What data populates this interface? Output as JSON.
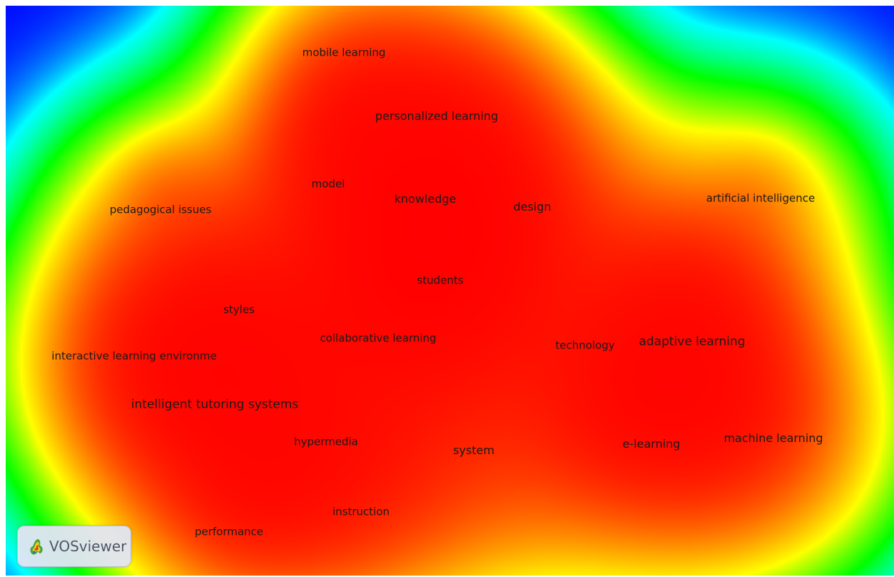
{
  "app": {
    "name": "VOSviewer",
    "logo_icon": "vosviewer-logo-icon"
  },
  "colors": {
    "background": "#0000ff",
    "gradient": [
      "#0000ff",
      "#00ffff",
      "#00ff00",
      "#ffff00",
      "#ff8000",
      "#ff0000"
    ]
  },
  "terms": [
    {
      "id": "mobile-learning",
      "label": "mobile learning",
      "weight": 0.55
    },
    {
      "id": "personalized-learning",
      "label": "personalized learning",
      "weight": 0.9
    },
    {
      "id": "model",
      "label": "model",
      "weight": 0.5
    },
    {
      "id": "knowledge",
      "label": "knowledge",
      "weight": 0.85
    },
    {
      "id": "design",
      "label": "design",
      "weight": 0.8
    },
    {
      "id": "artificial-intelligence",
      "label": "artificial intelligence",
      "weight": 0.5
    },
    {
      "id": "pedagogical-issues",
      "label": "pedagogical issues",
      "weight": 0.5
    },
    {
      "id": "students",
      "label": "students",
      "weight": 0.65
    },
    {
      "id": "styles",
      "label": "styles",
      "weight": 0.7
    },
    {
      "id": "collaborative-learning",
      "label": "collaborative learning",
      "weight": 0.6
    },
    {
      "id": "technology",
      "label": "technology",
      "weight": 0.55
    },
    {
      "id": "adaptive-learning",
      "label": "adaptive learning",
      "weight": 1.0
    },
    {
      "id": "interactive-learning-environme",
      "label": "interactive learning environme",
      "weight": 0.7
    },
    {
      "id": "intelligent-tutoring-systems",
      "label": "intelligent tutoring systems",
      "weight": 1.0
    },
    {
      "id": "hypermedia",
      "label": "hypermedia",
      "weight": 0.6
    },
    {
      "id": "system",
      "label": "system",
      "weight": 0.9
    },
    {
      "id": "e-learning",
      "label": "e-learning",
      "weight": 0.9
    },
    {
      "id": "machine-learning",
      "label": "machine learning",
      "weight": 0.75
    },
    {
      "id": "instruction",
      "label": "instruction",
      "weight": 0.6
    },
    {
      "id": "performance",
      "label": "performance",
      "weight": 0.55
    }
  ]
}
